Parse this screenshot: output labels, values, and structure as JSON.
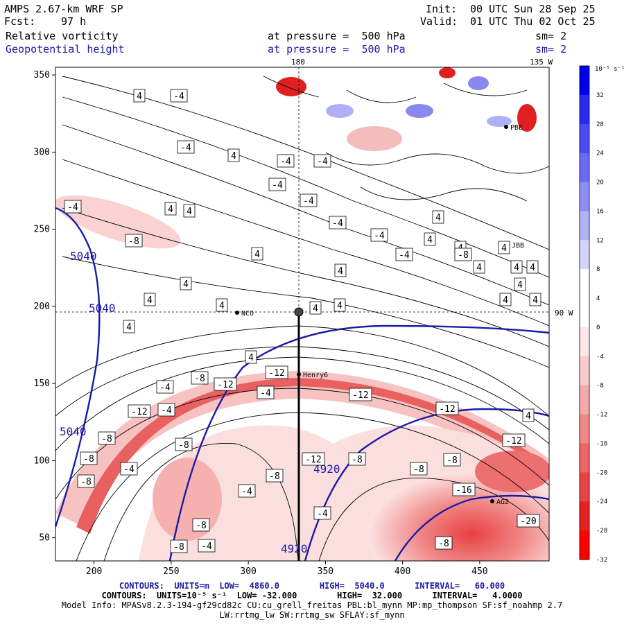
{
  "header": {
    "model_title": "AMPS 2.67-km WRF SP",
    "forecast_label": "Fcst:",
    "forecast_value": "97 h",
    "init_label": "Init:",
    "init_value": "00 UTC Sun 28 Sep 25",
    "valid_label": "Valid:",
    "valid_value": "01 UTC Thu 02 Oct 25",
    "field1_name": "Relative vorticity",
    "field1_level": "at pressure =  500 hPa",
    "field1_smooth": "sm= 2",
    "field2_name": "Geopotential height",
    "field2_level": "at pressure =  500 hPa",
    "field2_smooth": "sm= 2"
  },
  "map": {
    "x_ticks": [
      "200",
      "250",
      "300",
      "350",
      "400",
      "450"
    ],
    "y_ticks": [
      "350",
      "300",
      "250",
      "200",
      "150",
      "100",
      "50"
    ],
    "meridian_top_label": "180",
    "meridian_top_right_label": "135 W",
    "parallel_right_label": "90 W",
    "stations": [
      {
        "code": "NCO"
      },
      {
        "code": "Henry6"
      },
      {
        "code": "AG2"
      },
      {
        "code": "JBB"
      },
      {
        "code": "PBE"
      }
    ],
    "height_labels": [
      "5040",
      "5040",
      "5040",
      "4920",
      "4920"
    ],
    "vorticity_labels": [
      "-4",
      "-4",
      "-4",
      "-4",
      "-4",
      "-4",
      "-4",
      "-4",
      "-4",
      "-4",
      "-4",
      "-4",
      "-4",
      "-4",
      "-4",
      "-4",
      "-4",
      "4",
      "4",
      "4",
      "4",
      "4",
      "4",
      "4",
      "4",
      "4",
      "4",
      "4",
      "4",
      "4",
      "4",
      "4",
      "4",
      "4",
      "4",
      "4",
      "4",
      "4",
      "4",
      "4",
      "4",
      "-8",
      "-8",
      "-8",
      "-8",
      "-8",
      "-8",
      "-8",
      "-8",
      "-8",
      "-8",
      "-8",
      "-8",
      "-8",
      "-8",
      "-12",
      "-12",
      "-12",
      "-12",
      "-12",
      "-12",
      "-12",
      "-16",
      "-20"
    ]
  },
  "colorbar": {
    "unit_label": "10⁻⁵ s⁻¹",
    "levels": [
      "32",
      "28",
      "24",
      "20",
      "16",
      "12",
      "8",
      "4",
      "0",
      "-4",
      "-8",
      "-12",
      "-16",
      "-20",
      "-24",
      "-28",
      "-32"
    ],
    "colors": [
      "#0000e8",
      "#2a2af0",
      "#4a4af4",
      "#6a6af6",
      "#8e8ef8",
      "#b2b2fa",
      "#d4d4fc",
      "#ffffff",
      "#ffffff",
      "#fce8e8",
      "#f8cccc",
      "#f4aaaa",
      "#f08888",
      "#ec6666",
      "#e84444",
      "#e42222",
      "#ff0000"
    ]
  },
  "footer": {
    "height_contours": "CONTOURS:  UNITS=m  LOW=  4860.0        HIGH=  5040.0      INTERVAL=   60.000",
    "vort_contours": "CONTOURS:  UNITS=10⁻⁵ s⁻¹  LOW= -32.000        HIGH=  32.000      INTERVAL=   4.0000",
    "model_info": "Model Info: MPASv8.2.3-194-gf29cd82c CU:cu_grell_freitas PBL:bl_mynn MP:mp_thompson SF:sf_noahmp 2.7",
    "model_info2": "LW:rrtmg_lw SW:rrtmg_sw SFLAY:sf_mynn"
  }
}
